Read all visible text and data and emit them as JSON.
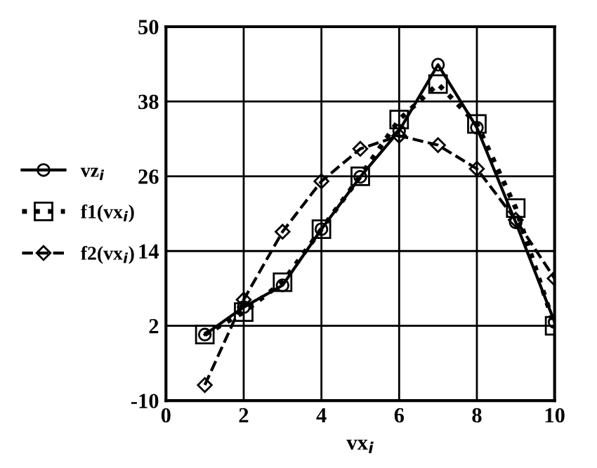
{
  "chart_data": {
    "type": "line",
    "xlabel": "vx$_{i}$",
    "x": [
      1,
      2,
      3,
      4,
      5,
      6,
      7,
      8,
      9,
      10
    ],
    "series": [
      {
        "name": "vz$_{i}$",
        "color": "#000000",
        "marker": "circle",
        "line_style": "solid",
        "values": [
          0.6,
          5,
          8.5,
          17.5,
          25.9,
          33.3,
          43.9,
          33.8,
          18.6,
          2.6
        ]
      },
      {
        "name": "f1(vx$_{i}$)",
        "color": "#000000",
        "marker": "square",
        "line_style": "dotted",
        "values": [
          0.6,
          4.2,
          9,
          17.5,
          26,
          35.1,
          40.8,
          34.4,
          20.9,
          2.0
        ]
      },
      {
        "name": "f2(vx$_{i}$)",
        "color": "#000000",
        "marker": "diamond",
        "line_style": "dashed",
        "values": [
          -7.5,
          6.2,
          17.1,
          25.2,
          30.4,
          32.5,
          31.0,
          27.2,
          19,
          9.6
        ]
      }
    ],
    "xlim": [
      0,
      10
    ],
    "xticks": [
      0,
      2,
      4,
      6,
      8,
      10
    ],
    "ylim": [
      -10,
      50
    ],
    "yticks": [
      -10,
      2,
      14,
      26,
      38,
      50
    ],
    "grid": true,
    "legend": "left"
  }
}
